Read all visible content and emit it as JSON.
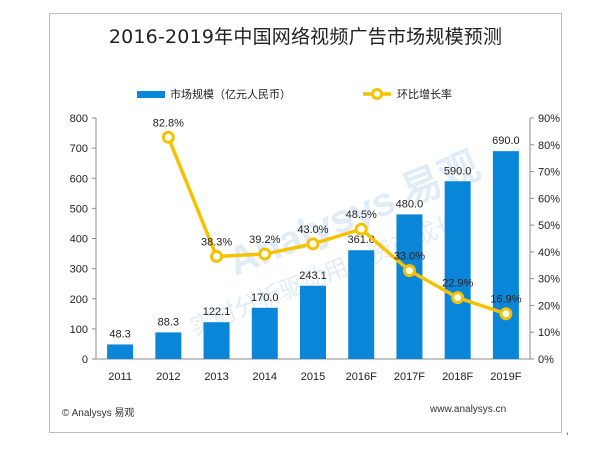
{
  "chart_data": {
    "type": "bar+line",
    "title": "2016-2019年中国网络视频广告市场规模预测",
    "categories": [
      "2011",
      "2012",
      "2013",
      "2014",
      "2015",
      "2016F",
      "2017F",
      "2018F",
      "2019F"
    ],
    "series": [
      {
        "name": "市场规模（亿元人民币）",
        "type": "bar",
        "axis": "left",
        "values": [
          48.3,
          88.3,
          122.1,
          170.0,
          243.1,
          361.0,
          480.0,
          590.0,
          690.0
        ],
        "labels": [
          "48.3",
          "88.3",
          "122.1",
          "170.0",
          "243.1",
          "361.0",
          "480.0",
          "590.0",
          "690.0"
        ],
        "color": "#0a86d8"
      },
      {
        "name": "环比增长率",
        "type": "line",
        "axis": "right",
        "x": [
          "2012",
          "2013",
          "2014",
          "2015",
          "2016F",
          "2017F",
          "2018F",
          "2019F"
        ],
        "values": [
          82.8,
          38.3,
          39.2,
          43.0,
          48.5,
          33.0,
          22.9,
          16.9
        ],
        "labels": [
          "82.8%",
          "38.3%",
          "39.2%",
          "43.0%",
          "48.5%",
          "33.0%",
          "22.9%",
          "16.9%"
        ],
        "color": "#f5c200"
      }
    ],
    "left_axis": {
      "ylim": [
        0,
        800
      ],
      "ticks": [
        "0",
        "100",
        "200",
        "300",
        "400",
        "500",
        "600",
        "700",
        "800"
      ]
    },
    "right_axis": {
      "ylim": [
        0,
        90
      ],
      "ticks": [
        "0%",
        "10%",
        "20%",
        "30%",
        "40%",
        "50%",
        "60%",
        "70%",
        "80%",
        "90%"
      ]
    },
    "grid": false,
    "legend_position": "top"
  },
  "footer": {
    "source": "© Analysys 易观",
    "url": "www.analysys.cn"
  },
  "watermark": {
    "text": "Analysys 易观",
    "subtext": "实时分析驱动用户资产成长"
  },
  "corner_mark": "'"
}
